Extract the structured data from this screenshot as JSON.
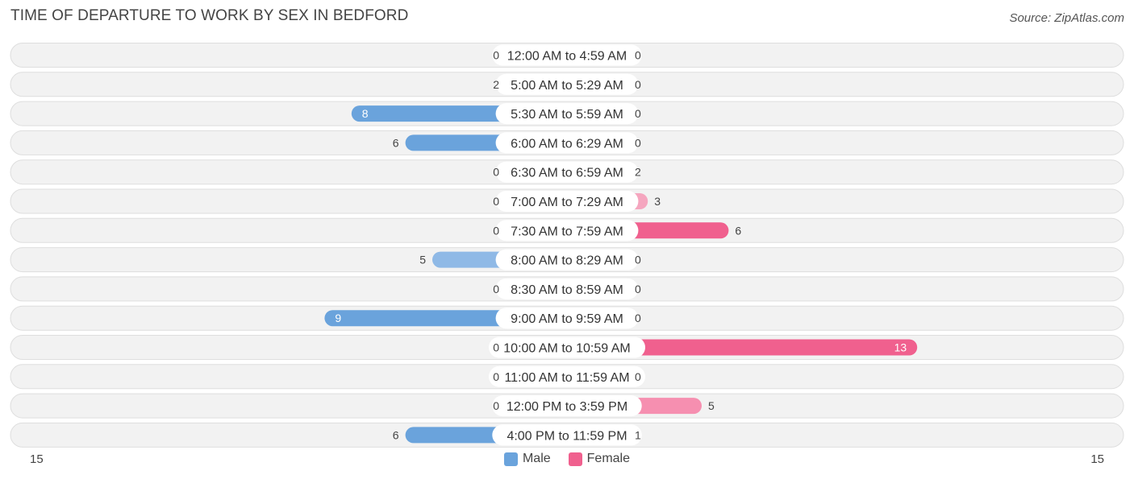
{
  "header": {
    "title": "TIME OF DEPARTURE TO WORK BY SEX IN BEDFORD",
    "source": "Source: ZipAtlas.com"
  },
  "axis": {
    "left_label": "15",
    "right_label": "15"
  },
  "legend": {
    "male_label": "Male",
    "female_label": "Female"
  },
  "colors": {
    "male": "#6aa3dc",
    "male_light": "#a9c8ea",
    "female": "#f0608e",
    "female_light": "#f5a6bf",
    "row_bg": "#f2f2f2",
    "row_border": "#dedede"
  },
  "chart_data": {
    "type": "bar",
    "orientation": "horizontal-diverging",
    "title": "TIME OF DEPARTURE TO WORK BY SEX IN BEDFORD",
    "xlim": [
      -15,
      15
    ],
    "categories": [
      "12:00 AM to 4:59 AM",
      "5:00 AM to 5:29 AM",
      "5:30 AM to 5:59 AM",
      "6:00 AM to 6:29 AM",
      "6:30 AM to 6:59 AM",
      "7:00 AM to 7:29 AM",
      "7:30 AM to 7:59 AM",
      "8:00 AM to 8:29 AM",
      "8:30 AM to 8:59 AM",
      "9:00 AM to 9:59 AM",
      "10:00 AM to 10:59 AM",
      "11:00 AM to 11:59 AM",
      "12:00 PM to 3:59 PM",
      "4:00 PM to 11:59 PM"
    ],
    "series": [
      {
        "name": "Male",
        "values": [
          0,
          2,
          8,
          6,
          0,
          0,
          0,
          5,
          0,
          9,
          0,
          0,
          0,
          6
        ]
      },
      {
        "name": "Female",
        "values": [
          0,
          0,
          0,
          0,
          2,
          3,
          6,
          0,
          0,
          0,
          13,
          0,
          5,
          1
        ]
      }
    ],
    "legend_position": "bottom-center"
  }
}
